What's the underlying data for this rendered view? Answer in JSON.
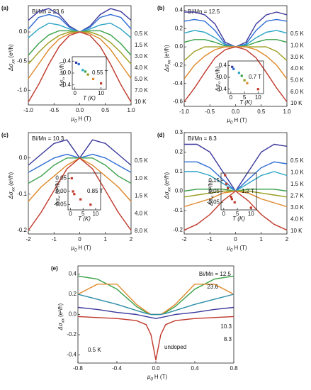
{
  "chart_data": [
    {
      "type": "line",
      "panel_label": "(a)",
      "title": "Bi/Mn = 23.6",
      "x": [
        -1,
        -0.8,
        -0.6,
        -0.4,
        -0.2,
        0,
        0.2,
        0.4,
        0.6,
        0.8,
        1
      ],
      "xlim": [
        -1,
        1
      ],
      "xticks": [
        {
          "value": -1,
          "label": "-1.0"
        },
        -0.5,
        {
          "value": 0,
          "label": "0.0"
        },
        0.5,
        {
          "value": 1,
          "label": "1.0"
        }
      ],
      "ylim": [
        -1.25,
        0.45
      ],
      "yticks": [
        {
          "value": 0,
          "label": "0.0"
        },
        -0.5,
        {
          "value": -1,
          "label": "-1.0"
        }
      ],
      "xlabel": {
        "symbol": "μ",
        "subscript": "0",
        "unit": "H (T)"
      },
      "ylabel": {
        "symbol": "Δσ",
        "subscript": "xx",
        "unit": "(e²/ħ)"
      },
      "series": [
        {
          "name": "0.5 K",
          "color": "#3b3b9e",
          "values": [
            0.2,
            0.35,
            0.4,
            0.3,
            0.1,
            0,
            0.1,
            0.3,
            0.4,
            0.35,
            0.2
          ]
        },
        {
          "name": "1.5 K",
          "color": "#2c6fd6",
          "values": [
            0.05,
            0.25,
            0.3,
            0.25,
            0.08,
            0,
            0.08,
            0.25,
            0.3,
            0.25,
            0.05
          ]
        },
        {
          "name": "3.0 K",
          "color": "#2aa6c8",
          "values": [
            -0.1,
            0.05,
            0.15,
            0.12,
            0.05,
            0,
            0.05,
            0.12,
            0.15,
            0.05,
            -0.1
          ]
        },
        {
          "name": "4.0 K",
          "color": "#3aa34a",
          "values": [
            -0.4,
            -0.2,
            -0.05,
            0.02,
            0.02,
            0,
            0.02,
            0.02,
            -0.05,
            -0.2,
            -0.4
          ]
        },
        {
          "name": "5.0 K",
          "color": "#9aa020",
          "values": [
            -0.55,
            -0.35,
            -0.18,
            -0.06,
            0,
            0,
            0,
            -0.06,
            -0.18,
            -0.35,
            -0.55
          ]
        },
        {
          "name": "7.0 K",
          "color": "#e08a2a",
          "values": [
            -0.8,
            -0.55,
            -0.3,
            -0.12,
            -0.03,
            0,
            -0.03,
            -0.12,
            -0.3,
            -0.55,
            -0.8
          ]
        },
        {
          "name": "10 K",
          "color": "#c0392b",
          "values": [
            -1.2,
            -0.9,
            -0.55,
            -0.25,
            -0.06,
            0,
            -0.06,
            -0.25,
            -0.55,
            -0.9,
            -1.2
          ]
        }
      ],
      "inset": {
        "type": "scatter",
        "annotation": "0.55 T",
        "x": [
          0.5,
          1.5,
          3,
          4,
          5,
          7,
          10
        ],
        "values": [
          0.35,
          0.3,
          0.1,
          0.05,
          -0.05,
          -0.2,
          -0.35
        ],
        "colors": [
          "#3b3b9e",
          "#2c6fd6",
          "#2aa6c8",
          "#3aa34a",
          "#9aa020",
          "#e08a2a",
          "#c0392b"
        ],
        "xlim": [
          -1,
          12
        ],
        "xticks": [
          0,
          10
        ],
        "ylim": [
          -0.55,
          0.55
        ],
        "yticks": [
          0.4,
          {
            "value": 0,
            "label": "0.0"
          },
          -0.4
        ],
        "xlabel": "T (K)",
        "ylabel": {
          "symbol": "Δσ",
          "subscript": "xx",
          "unit": "(e²/ħ)"
        }
      }
    },
    {
      "type": "line",
      "panel_label": "(b)",
      "title": "Bi/Mn = 12.5",
      "x": [
        -1,
        -0.8,
        -0.6,
        -0.4,
        -0.2,
        0,
        0.2,
        0.4,
        0.6,
        0.8,
        1
      ],
      "xlim": [
        -1,
        1
      ],
      "xticks": [
        {
          "value": -1,
          "label": "-1.0"
        },
        -0.5,
        {
          "value": 0,
          "label": "0.0"
        },
        0.5,
        {
          "value": 1,
          "label": "1.0"
        }
      ],
      "ylim": [
        -0.65,
        0.45
      ],
      "yticks": [
        0.4,
        0.2,
        {
          "value": 0,
          "label": "0.0"
        },
        -0.2,
        -0.4,
        -0.6
      ],
      "xlabel": {
        "symbol": "μ",
        "subscript": "0",
        "unit": "H (T)"
      },
      "ylabel": {
        "symbol": "Δσ",
        "subscript": "xx",
        "unit": "(e²/ħ)"
      },
      "series": [
        {
          "name": "0.5 K",
          "color": "#3b3b9e",
          "values": [
            0.38,
            0.38,
            0.35,
            0.25,
            0.05,
            0,
            0.05,
            0.25,
            0.35,
            0.38,
            0.35
          ]
        },
        {
          "name": "1.0 K",
          "color": "#2c6fd6",
          "values": [
            0.28,
            0.3,
            0.28,
            0.18,
            0.03,
            0,
            0.03,
            0.18,
            0.28,
            0.3,
            0.28
          ]
        },
        {
          "name": "3.0 K",
          "color": "#2aa6c8",
          "values": [
            0.15,
            0.18,
            0.16,
            0.1,
            0.02,
            0,
            0.02,
            0.1,
            0.16,
            0.18,
            0.15
          ]
        },
        {
          "name": "4.0 K",
          "color": "#3aa34a",
          "values": [
            0.05,
            0.08,
            0.08,
            0.05,
            0.01,
            0,
            0.01,
            0.05,
            0.08,
            0.08,
            0.05
          ]
        },
        {
          "name": "5.0 K",
          "color": "#9aa020",
          "values": [
            -0.15,
            -0.05,
            0,
            0,
            0,
            0,
            0,
            0,
            0,
            -0.05,
            -0.15
          ]
        },
        {
          "name": "6.0 K",
          "color": "#e08a2a",
          "values": [
            -0.35,
            -0.2,
            -0.1,
            -0.03,
            0,
            0,
            0,
            -0.03,
            -0.1,
            -0.2,
            -0.35
          ]
        },
        {
          "name": "10 K",
          "color": "#c0392b",
          "values": [
            -0.6,
            -0.45,
            -0.28,
            -0.12,
            -0.03,
            0,
            -0.03,
            -0.12,
            -0.28,
            -0.45,
            -0.6
          ]
        }
      ],
      "inset": {
        "type": "scatter",
        "annotation": "0.7 T",
        "x": [
          0.5,
          1,
          3,
          4,
          5,
          6,
          10
        ],
        "values": [
          0.35,
          0.28,
          0.15,
          0.05,
          -0.1,
          -0.2,
          -0.4
        ],
        "colors": [
          "#3b3b9e",
          "#2c6fd6",
          "#2aa6c8",
          "#3aa34a",
          "#9aa020",
          "#e08a2a",
          "#c0392b"
        ],
        "xlim": [
          -1,
          12
        ],
        "xticks": [
          0,
          5,
          10
        ],
        "ylim": [
          -0.55,
          0.55
        ],
        "yticks": [
          0.4,
          {
            "value": 0,
            "label": "0.0"
          },
          -0.4
        ],
        "xlabel": "T (K)",
        "ylabel": {
          "symbol": "Δσ",
          "subscript": "xx",
          "unit": "(e²/ħ)"
        }
      }
    },
    {
      "type": "line",
      "panel_label": "(c)",
      "title": "Bi/Mn = 10.3",
      "x": [
        -2,
        -1.5,
        -1,
        -0.5,
        0,
        0.5,
        1,
        1.5,
        2
      ],
      "xlim": [
        -2,
        2
      ],
      "xticks": [
        -2,
        -1,
        0,
        1,
        2
      ],
      "ylim": [
        -0.21,
        0.07
      ],
      "yticks": [
        {
          "value": 0,
          "label": "0.0"
        },
        -0.1,
        -0.2
      ],
      "xlabel": {
        "symbol": "μ",
        "subscript": "0",
        "unit": "H (T)"
      },
      "ylabel": {
        "symbol": "Δσ",
        "subscript": "xx",
        "unit": "(e²/ħ)"
      },
      "series": [
        {
          "name": "0.5 K",
          "color": "#3b3b9e",
          "values": [
            -0.02,
            0.01,
            0.04,
            0.05,
            0,
            0.05,
            0.04,
            0.01,
            -0.02
          ]
        },
        {
          "name": "1.0 K",
          "color": "#2c6fd6",
          "values": [
            -0.04,
            -0.02,
            0,
            0.01,
            0,
            0.01,
            0,
            -0.02,
            -0.04
          ]
        },
        {
          "name": "1.5 K",
          "color": "#3aa34a",
          "values": [
            -0.07,
            -0.05,
            -0.02,
            0,
            0,
            0,
            -0.02,
            -0.05,
            -0.07
          ]
        },
        {
          "name": "4.0 K",
          "color": "#e08a2a",
          "values": [
            -0.12,
            -0.08,
            -0.05,
            -0.02,
            0,
            -0.02,
            -0.05,
            -0.08,
            -0.12
          ]
        },
        {
          "name": "8.0 K",
          "color": "#c0392b",
          "values": [
            -0.2,
            -0.15,
            -0.09,
            -0.03,
            0,
            -0.03,
            -0.09,
            -0.15,
            -0.2
          ]
        }
      ],
      "inset": {
        "type": "scatter",
        "annotation": "0.85 T",
        "x": [
          0.5,
          1,
          1.5,
          4,
          8
        ],
        "values": [
          0.05,
          0,
          -0.01,
          -0.03,
          -0.05
        ],
        "colors": [
          "#c0392b",
          "#c0392b",
          "#c0392b",
          "#c0392b",
          "#c0392b"
        ],
        "xlim": [
          -1,
          12
        ],
        "xticks": [
          0,
          5,
          10
        ],
        "ylim": [
          -0.07,
          0.07
        ],
        "yticks": [
          0.05,
          {
            "value": 0,
            "label": "0.00"
          },
          -0.05
        ],
        "xlabel": "T (K)",
        "ylabel": {
          "symbol": "Δσ",
          "subscript": "xx",
          "unit": "(e²/ħ)"
        }
      }
    },
    {
      "type": "line",
      "panel_label": "(d)",
      "title": "Bi/Mn = 8.3",
      "x": [
        -2,
        -1.5,
        -1,
        -0.5,
        0,
        0.5,
        1,
        1.5,
        2
      ],
      "xlim": [
        -2,
        2
      ],
      "xticks": [
        -2,
        -1,
        0,
        1,
        2
      ],
      "ylim": [
        -0.22,
        0.3
      ],
      "yticks": [
        0.3,
        0.2,
        0.1,
        {
          "value": 0,
          "label": "0.0"
        },
        -0.1,
        -0.2
      ],
      "xlabel": {
        "symbol": "μ",
        "subscript": "0",
        "unit": "H (T)"
      },
      "ylabel": {
        "symbol": "Δσ",
        "subscript": "xx",
        "unit": "(e²/ħ)"
      },
      "series": [
        {
          "name": "0.5 K",
          "color": "#3b3b9e",
          "values": [
            0.24,
            0.24,
            0.2,
            0.1,
            0,
            0.1,
            0.2,
            0.24,
            0.23
          ]
        },
        {
          "name": "1.0 K",
          "color": "#2c6fd6",
          "values": [
            0.15,
            0.15,
            0.12,
            0.06,
            0,
            0.06,
            0.12,
            0.15,
            0.14
          ]
        },
        {
          "name": "1.5 K",
          "color": "#2aa6c8",
          "values": [
            0.1,
            0.1,
            0.08,
            0.04,
            0,
            0.04,
            0.08,
            0.1,
            0.08
          ]
        },
        {
          "name": "2.7 K",
          "color": "#3aa34a",
          "values": [
            0,
            0.01,
            0.01,
            0.01,
            0,
            0.01,
            0.01,
            0.01,
            0
          ]
        },
        {
          "name": "3.0 K",
          "color": "#9aa020",
          "values": [
            -0.03,
            -0.02,
            -0.01,
            0,
            0,
            0,
            -0.01,
            -0.02,
            -0.03
          ]
        },
        {
          "name": "4.0 K",
          "color": "#e08a2a",
          "values": [
            -0.08,
            -0.06,
            -0.04,
            -0.01,
            0,
            -0.01,
            -0.04,
            -0.06,
            -0.08
          ]
        },
        {
          "name": "10 K",
          "color": "#c0392b",
          "values": [
            -0.2,
            -0.17,
            -0.12,
            -0.05,
            0,
            -0.05,
            -0.12,
            -0.17,
            -0.2
          ]
        }
      ],
      "inset": {
        "type": "scatter",
        "annotation": "1.2 T",
        "x": [
          0.5,
          1,
          1.5,
          2.7,
          3,
          4,
          10
        ],
        "values": [
          0.2,
          0.12,
          0.08,
          0,
          -0.02,
          -0.05,
          -0.1
        ],
        "colors": [
          "#c0392b",
          "#c0392b",
          "#c0392b",
          "#c0392b",
          "#c0392b",
          "#c0392b",
          "#c0392b"
        ],
        "xlim": [
          -1,
          12
        ],
        "xticks": [
          0,
          5,
          10
        ],
        "ylim": [
          -0.12,
          0.22
        ],
        "yticks": [
          0.15,
          0.05,
          -0.05
        ],
        "xlabel": "T (K)",
        "ylabel": {
          "symbol": "Δσ",
          "subscript": "xx",
          "unit": "(e²/ħ)"
        }
      }
    },
    {
      "type": "line",
      "panel_label": "(e)",
      "annotation": "0.5 K",
      "x": [
        -0.8,
        -0.6,
        -0.4,
        -0.2,
        -0.1,
        -0.05,
        0,
        0.05,
        0.1,
        0.2,
        0.4,
        0.6,
        0.8
      ],
      "xlim": [
        -0.8,
        0.8
      ],
      "xticks": [
        -0.8,
        -0.4,
        {
          "value": 0,
          "label": "0.0"
        },
        0.4,
        0.8
      ],
      "ylim": [
        -0.48,
        0.48
      ],
      "yticks": [
        0.4,
        0.2,
        {
          "value": 0,
          "label": "0.0"
        },
        -0.2,
        -0.4
      ],
      "xlabel": {
        "symbol": "μ",
        "subscript": "0",
        "unit": "H (T)"
      },
      "ylabel": {
        "symbol": "Δσ",
        "subscript": "xx",
        "unit": "(e²/ħ)"
      },
      "series": [
        {
          "name": "Bi/Mn = 12.5",
          "color": "#3aa34a",
          "values": [
            0.38,
            0.35,
            0.25,
            0.08,
            0.02,
            0,
            0,
            0,
            0.02,
            0.08,
            0.25,
            0.35,
            0.38
          ]
        },
        {
          "name": "23.6",
          "color": "#e08a2a",
          "values": [
            0.2,
            0.3,
            0.3,
            0.1,
            0.03,
            0,
            0,
            0,
            0.03,
            0.1,
            0.3,
            0.3,
            0.2
          ]
        },
        {
          "name": "10.3",
          "color": "#2a8fa8",
          "values": [
            0.2,
            0.15,
            0.1,
            0.04,
            0.01,
            0,
            0,
            0,
            0.01,
            0.04,
            0.1,
            0.15,
            0.2
          ]
        },
        {
          "name": "8.3",
          "color": "#3b3b9e",
          "values": [
            0.07,
            0.05,
            0.02,
            0,
            -0.02,
            -0.03,
            -0.04,
            -0.03,
            -0.02,
            0,
            0.02,
            0.05,
            0.07
          ]
        },
        {
          "name": "undoped",
          "color": "#c0392b",
          "values": [
            -0.02,
            -0.03,
            -0.04,
            -0.06,
            -0.1,
            -0.2,
            -0.45,
            -0.2,
            -0.1,
            -0.06,
            -0.04,
            -0.03,
            -0.02
          ]
        }
      ]
    }
  ]
}
